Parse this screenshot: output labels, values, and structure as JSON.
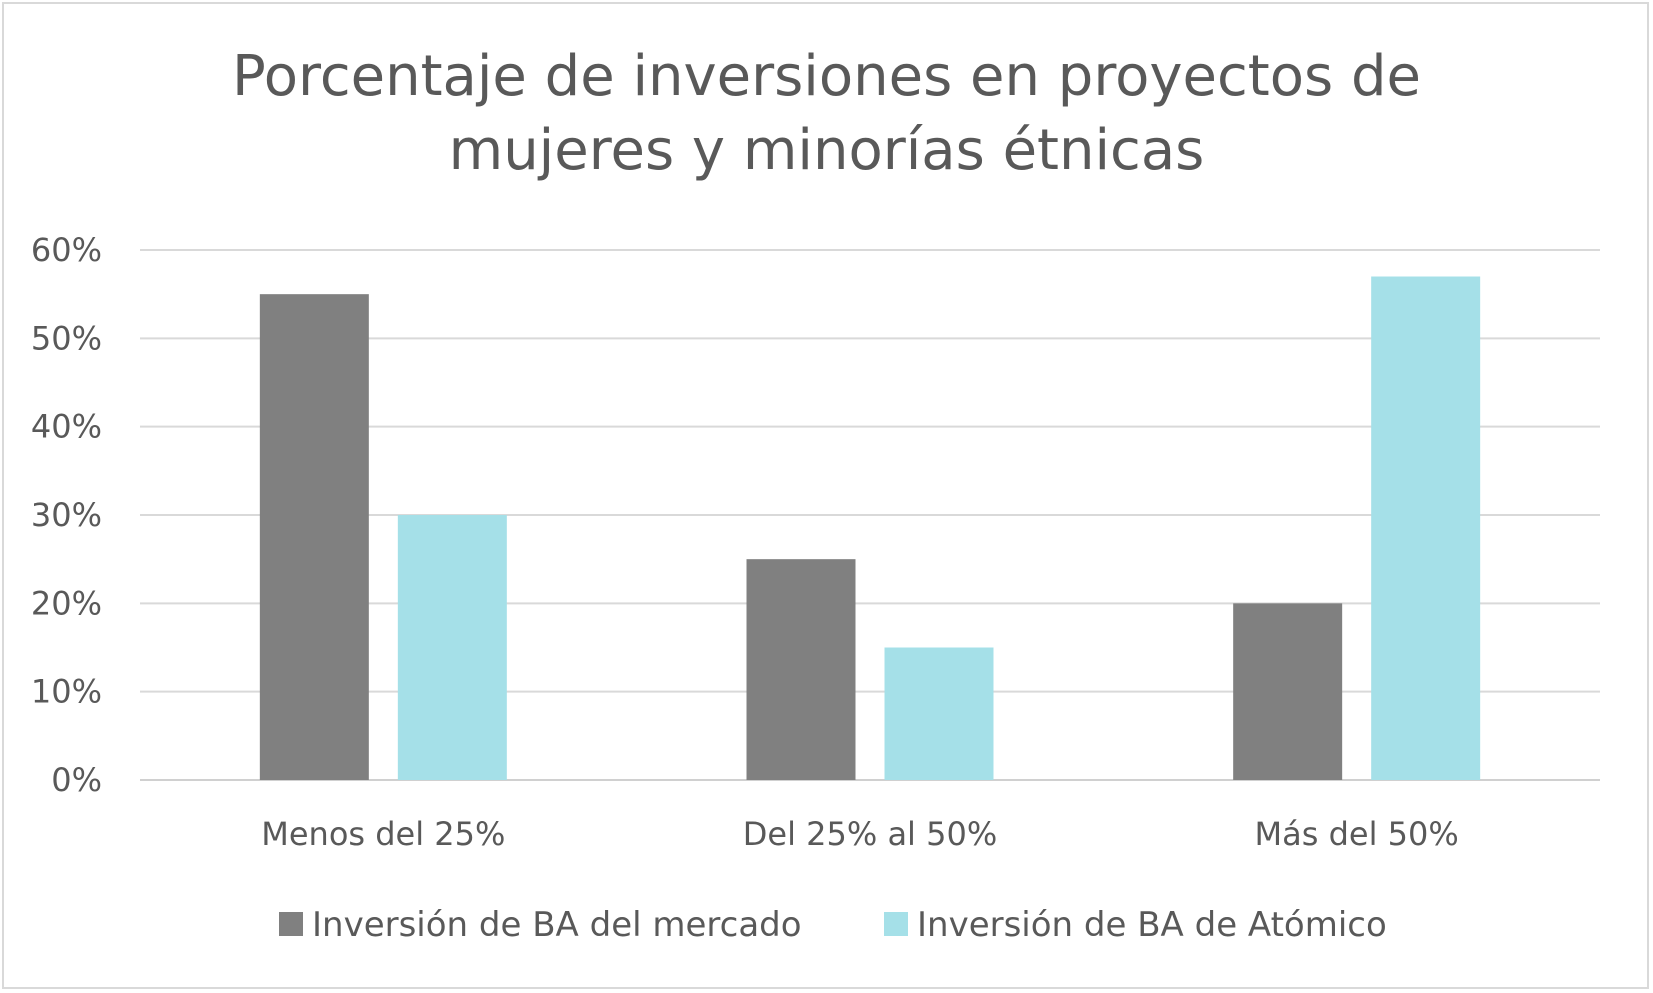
{
  "chart_data": {
    "type": "bar",
    "title": "Porcentaje de inversiones en proyectos de mujeres y minorías étnicas",
    "title_lines": [
      "Porcentaje de inversiones en proyectos de",
      "mujeres y minorías étnicas"
    ],
    "categories": [
      "Menos del 25%",
      "Del 25% al 50%",
      "Más del 50%"
    ],
    "series": [
      {
        "name": "Inversión de BA del mercado",
        "values": [
          55,
          25,
          20
        ],
        "color": "#808080"
      },
      {
        "name": "Inversión de BA de Atómico",
        "values": [
          30,
          15,
          57
        ],
        "color": "#a5e0e8"
      }
    ],
    "ylim": [
      0,
      60
    ],
    "yticks": [
      "0%",
      "10%",
      "20%",
      "30%",
      "40%",
      "50%",
      "60%"
    ],
    "ytick_values": [
      0,
      10,
      20,
      30,
      40,
      50,
      60
    ],
    "grid": true,
    "legend_position": "bottom",
    "xlabel": "",
    "ylabel": ""
  }
}
